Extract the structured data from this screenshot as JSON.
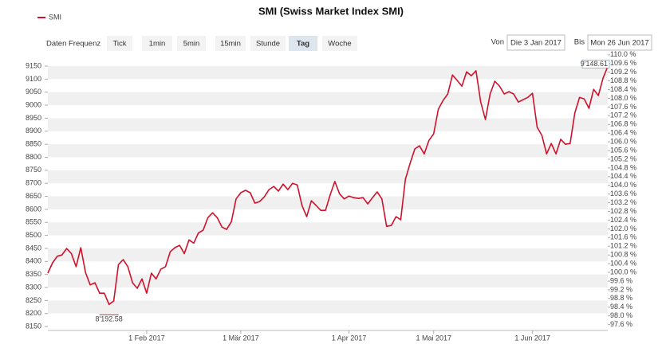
{
  "chart_data": {
    "type": "line",
    "title": "SMI (Swiss Market Index SMI)",
    "x": [
      "2017-01-03",
      "2017-01-04",
      "2017-01-05",
      "2017-01-06",
      "2017-01-09",
      "2017-01-10",
      "2017-01-11",
      "2017-01-12",
      "2017-01-13",
      "2017-01-16",
      "2017-01-17",
      "2017-01-18",
      "2017-01-19",
      "2017-01-20",
      "2017-01-23",
      "2017-01-24",
      "2017-01-25",
      "2017-01-26",
      "2017-01-27",
      "2017-01-30",
      "2017-01-31",
      "2017-02-01",
      "2017-02-02",
      "2017-02-03",
      "2017-02-06",
      "2017-02-07",
      "2017-02-08",
      "2017-02-09",
      "2017-02-10",
      "2017-02-13",
      "2017-02-14",
      "2017-02-15",
      "2017-02-16",
      "2017-02-17",
      "2017-02-20",
      "2017-02-21",
      "2017-02-22",
      "2017-02-23",
      "2017-02-24",
      "2017-02-27",
      "2017-02-28",
      "2017-03-01",
      "2017-03-02",
      "2017-03-03",
      "2017-03-06",
      "2017-03-07",
      "2017-03-08",
      "2017-03-09",
      "2017-03-10",
      "2017-03-13",
      "2017-03-14",
      "2017-03-15",
      "2017-03-16",
      "2017-03-17",
      "2017-03-20",
      "2017-03-21",
      "2017-03-22",
      "2017-03-23",
      "2017-03-24",
      "2017-03-27",
      "2017-03-28",
      "2017-03-29",
      "2017-03-30",
      "2017-03-31",
      "2017-04-03",
      "2017-04-04",
      "2017-04-05",
      "2017-04-06",
      "2017-04-07",
      "2017-04-10",
      "2017-04-11",
      "2017-04-12",
      "2017-04-13",
      "2017-04-18",
      "2017-04-19",
      "2017-04-20",
      "2017-04-21",
      "2017-04-24",
      "2017-04-25",
      "2017-04-26",
      "2017-04-27",
      "2017-04-28",
      "2017-05-02",
      "2017-05-03",
      "2017-05-04",
      "2017-05-05",
      "2017-05-08",
      "2017-05-09",
      "2017-05-10",
      "2017-05-11",
      "2017-05-12",
      "2017-05-15",
      "2017-05-16",
      "2017-05-17",
      "2017-05-18",
      "2017-05-19",
      "2017-05-22",
      "2017-05-23",
      "2017-05-24",
      "2017-05-26",
      "2017-05-29",
      "2017-05-30",
      "2017-05-31",
      "2017-06-01",
      "2017-06-02",
      "2017-06-06",
      "2017-06-07",
      "2017-06-08",
      "2017-06-09",
      "2017-06-12",
      "2017-06-13",
      "2017-06-14",
      "2017-06-15",
      "2017-06-16",
      "2017-06-19",
      "2017-06-20",
      "2017-06-21",
      "2017-06-22",
      "2017-06-23",
      "2017-06-26"
    ],
    "series": [
      {
        "name": "SMI",
        "color": "#d0112b",
        "values": [
          8355,
          8395,
          8420,
          8425,
          8450,
          8430,
          8380,
          8453,
          8358,
          8310,
          8318,
          8278,
          8278,
          8235,
          8248,
          8388,
          8407,
          8380,
          8318,
          8297,
          8333,
          8278,
          8355,
          8333,
          8370,
          8380,
          8437,
          8453,
          8462,
          8430,
          8483,
          8470,
          8510,
          8520,
          8568,
          8587,
          8568,
          8532,
          8523,
          8553,
          8640,
          8664,
          8673,
          8664,
          8624,
          8630,
          8648,
          8676,
          8688,
          8670,
          8697,
          8676,
          8700,
          8694,
          8615,
          8572,
          8633,
          8615,
          8596,
          8596,
          8655,
          8707,
          8660,
          8640,
          8651,
          8645,
          8642,
          8645,
          8621,
          8645,
          8667,
          8640,
          8535,
          8538,
          8572,
          8560,
          8716,
          8777,
          8832,
          8844,
          8813,
          8865,
          8890,
          8985,
          9018,
          9043,
          9116,
          9095,
          9073,
          9128,
          9113,
          9132,
          9012,
          8945,
          9043,
          9092,
          9073,
          9043,
          9052,
          9043,
          9012,
          9021,
          9030,
          9046,
          8915,
          8884,
          8813,
          8853,
          8813,
          8869,
          8850,
          8853,
          8970,
          9030,
          9024,
          8988,
          9061,
          9037,
          9104,
          9148.61
        ]
      }
    ],
    "min_label": "8'192.58",
    "max_label": "9'148.61",
    "xticks": [
      {
        "value": "2017-02-01",
        "label": "1 Feb 2017"
      },
      {
        "value": "2017-03-01",
        "label": "1 Mär 2017"
      },
      {
        "value": "2017-04-01",
        "label": "1 Apr 2017"
      },
      {
        "value": "2017-05-01",
        "label": "1 Mai 2017"
      },
      {
        "value": "2017-06-01",
        "label": "1 Jun 2017"
      }
    ],
    "ylim": [
      8135,
      9196
    ],
    "yticks": [
      8150,
      8200,
      8250,
      8300,
      8350,
      8400,
      8450,
      8500,
      8550,
      8600,
      8650,
      8700,
      8750,
      8800,
      8850,
      8900,
      8950,
      9000,
      9050,
      9100,
      9150
    ],
    "y2lim": [
      97.33,
      110.03
    ],
    "y2ticks": [
      {
        "value": 97.6,
        "label": "97.6 %"
      },
      {
        "value": 98.0,
        "label": "98.0 %"
      },
      {
        "value": 98.4,
        "label": "98.4 %"
      },
      {
        "value": 98.8,
        "label": "98.8 %"
      },
      {
        "value": 99.2,
        "label": "99.2 %"
      },
      {
        "value": 99.6,
        "label": "99.6 %"
      },
      {
        "value": 100.0,
        "label": "100.0 %"
      },
      {
        "value": 100.4,
        "label": "100.4 %"
      },
      {
        "value": 100.8,
        "label": "100.8 %"
      },
      {
        "value": 101.2,
        "label": "101.2 %"
      },
      {
        "value": 101.6,
        "label": "101.6 %"
      },
      {
        "value": 102.0,
        "label": "102.0 %"
      },
      {
        "value": 102.4,
        "label": "102.4 %"
      },
      {
        "value": 102.8,
        "label": "102.8 %"
      },
      {
        "value": 103.2,
        "label": "103.2 %"
      },
      {
        "value": 103.6,
        "label": "103.6 %"
      },
      {
        "value": 104.0,
        "label": "104.0 %"
      },
      {
        "value": 104.4,
        "label": "104.4 %"
      },
      {
        "value": 104.8,
        "label": "104.8 %"
      },
      {
        "value": 105.2,
        "label": "105.2 %"
      },
      {
        "value": 105.6,
        "label": "105.6 %"
      },
      {
        "value": 106.0,
        "label": "106.0 %"
      },
      {
        "value": 106.4,
        "label": "106.4 %"
      },
      {
        "value": 106.8,
        "label": "106.8 %"
      },
      {
        "value": 107.2,
        "label": "107.2 %"
      },
      {
        "value": 107.6,
        "label": "107.6 %"
      },
      {
        "value": 108.0,
        "label": "108.0 %"
      },
      {
        "value": 108.4,
        "label": "108.4 %"
      },
      {
        "value": 108.8,
        "label": "108.8 %"
      },
      {
        "value": 109.2,
        "label": "109.2 %"
      },
      {
        "value": 109.6,
        "label": "109.6 %"
      },
      {
        "value": 110.0,
        "label": "110.0 %"
      }
    ],
    "grid": true
  },
  "controls": {
    "frequency_label": "Daten Frequenz",
    "frequency_options": [
      "Tick",
      "1min",
      "5min",
      "15min",
      "Stunde",
      "Tag",
      "Woche"
    ],
    "selected_frequency": "Tag",
    "from_label": "Von",
    "from_value": "Die 3 Jan 2017",
    "to_label": "Bis",
    "to_value": "Mon 26 Jun 2017"
  }
}
